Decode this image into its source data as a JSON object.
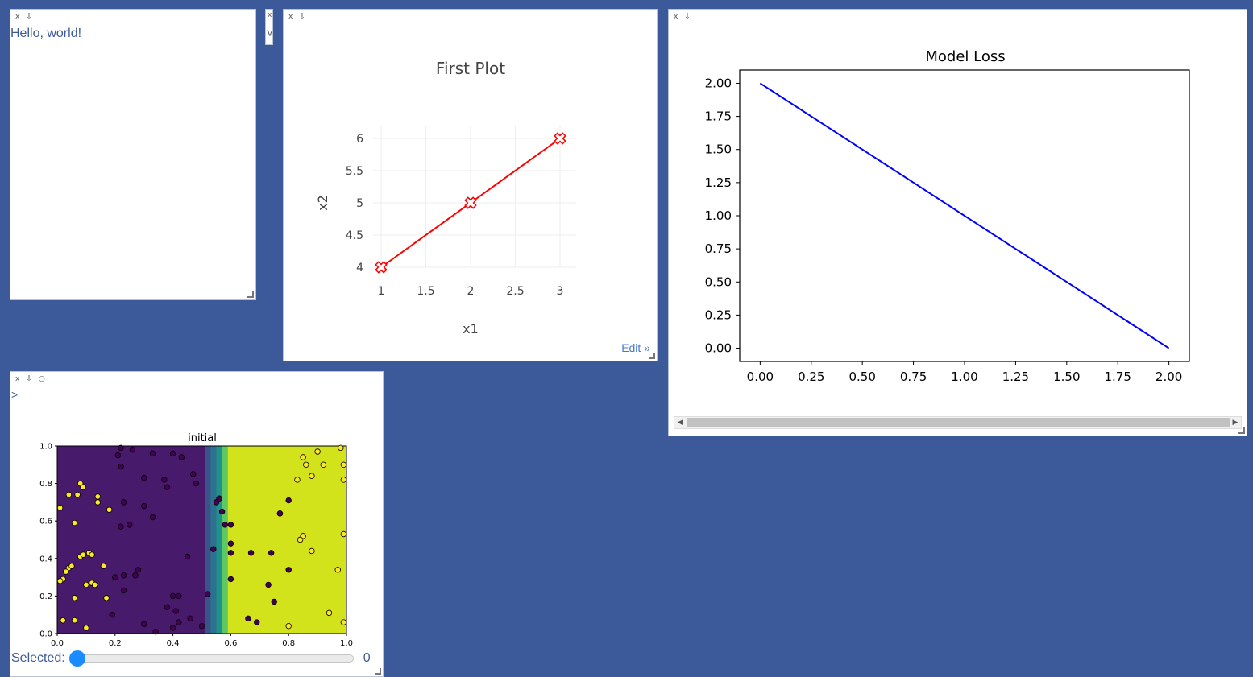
{
  "pane_controls": {
    "close": "x",
    "pin": "⇩",
    "refresh": "○"
  },
  "hello_pane": {
    "text": "Hello, world!"
  },
  "mini_pane": {
    "close": "x",
    "expand": ">"
  },
  "plotly_pane": {
    "edit_label": "Edit »",
    "chart_data": {
      "type": "line",
      "title": "First Plot",
      "xlabel": "x1",
      "ylabel": "x2",
      "x": [
        1,
        2,
        3
      ],
      "y": [
        4,
        5,
        6
      ],
      "xticks": [
        "1",
        "1.5",
        "2",
        "2.5",
        "3"
      ],
      "yticks": [
        "4",
        "4.5",
        "5",
        "5.5",
        "6"
      ],
      "xlim": [
        1,
        3
      ],
      "ylim": [
        4,
        6
      ],
      "line_color": "#ff0000",
      "marker": "x-cross",
      "grid": true
    }
  },
  "loss_pane": {
    "chart_data": {
      "type": "line",
      "title": "Model Loss",
      "x": [
        0.0,
        2.0
      ],
      "y": [
        2.0,
        0.0
      ],
      "xticks": [
        "0.00",
        "0.25",
        "0.50",
        "0.75",
        "1.00",
        "1.25",
        "1.50",
        "1.75",
        "2.00"
      ],
      "yticks": [
        "0.00",
        "0.25",
        "0.50",
        "0.75",
        "1.00",
        "1.25",
        "1.50",
        "1.75",
        "2.00"
      ],
      "xlim": [
        -0.1,
        2.1
      ],
      "ylim": [
        -0.1,
        2.1
      ],
      "line_color": "#0000ff",
      "grid": false
    }
  },
  "widget_pane": {
    "prompt": ">",
    "slider_label": "Selected:",
    "slider_value": "0",
    "slider_fraction": 0,
    "chart_data": {
      "type": "scatter",
      "title": "initial",
      "xticks": [
        "0.0",
        "0.2",
        "0.4",
        "0.6",
        "0.8",
        "1.0"
      ],
      "yticks": [
        "0.0",
        "0.2",
        "0.4",
        "0.6",
        "0.8",
        "1.0"
      ],
      "xlim": [
        0,
        1
      ],
      "ylim": [
        0,
        1
      ],
      "background_regions": [
        {
          "x0": 0.0,
          "x1": 0.51,
          "color": "#481a6c"
        },
        {
          "x0": 0.51,
          "x1": 0.53,
          "color": "#3b528b"
        },
        {
          "x0": 0.53,
          "x1": 0.55,
          "color": "#2c728e"
        },
        {
          "x0": 0.55,
          "x1": 0.57,
          "color": "#21918c"
        },
        {
          "x0": 0.57,
          "x1": 0.59,
          "color": "#5ec962"
        },
        {
          "x0": 0.59,
          "x1": 1.0,
          "color": "#d2e21b"
        }
      ],
      "series": [
        {
          "color": "#440154",
          "points": [
            [
              0.22,
              0.89
            ],
            [
              0.3,
              0.83
            ],
            [
              0.37,
              0.82
            ],
            [
              0.38,
              0.78
            ],
            [
              0.47,
              0.85
            ],
            [
              0.48,
              0.8
            ],
            [
              0.43,
              0.94
            ],
            [
              0.4,
              0.96
            ],
            [
              0.33,
              0.96
            ],
            [
              0.26,
              0.98
            ],
            [
              0.22,
              0.99
            ],
            [
              0.21,
              0.95
            ],
            [
              0.23,
              0.7
            ],
            [
              0.22,
              0.57
            ],
            [
              0.25,
              0.58
            ],
            [
              0.3,
              0.68
            ],
            [
              0.33,
              0.62
            ],
            [
              0.28,
              0.34
            ],
            [
              0.27,
              0.31
            ],
            [
              0.2,
              0.3
            ],
            [
              0.23,
              0.31
            ],
            [
              0.19,
              0.1
            ],
            [
              0.23,
              0.23
            ],
            [
              0.38,
              0.14
            ],
            [
              0.4,
              0.2
            ],
            [
              0.42,
              0.2
            ],
            [
              0.4,
              0.03
            ],
            [
              0.42,
              0.06
            ],
            [
              0.41,
              0.12
            ],
            [
              0.46,
              0.08
            ],
            [
              0.5,
              0.04
            ],
            [
              0.52,
              0.21
            ],
            [
              0.45,
              0.41
            ],
            [
              0.3,
              0.05
            ],
            [
              0.34,
              0.01
            ],
            [
              0.55,
              0.7
            ],
            [
              0.56,
              0.72
            ],
            [
              0.54,
              0.45
            ],
            [
              0.57,
              0.65
            ],
            [
              0.58,
              0.58
            ],
            [
              0.6,
              0.58
            ],
            [
              0.6,
              0.48
            ],
            [
              0.6,
              0.43
            ],
            [
              0.6,
              0.29
            ],
            [
              0.67,
              0.43
            ],
            [
              0.74,
              0.43
            ],
            [
              0.77,
              0.64
            ],
            [
              0.8,
              0.71
            ],
            [
              0.73,
              0.26
            ],
            [
              0.75,
              0.17
            ],
            [
              0.66,
              0.08
            ],
            [
              0.69,
              0.06
            ],
            [
              0.8,
              0.34
            ],
            [
              0.77,
              0.64
            ]
          ]
        },
        {
          "color": "#fde725",
          "points": [
            [
              0.01,
              0.67
            ],
            [
              0.04,
              0.74
            ],
            [
              0.07,
              0.74
            ],
            [
              0.08,
              0.8
            ],
            [
              0.09,
              0.78
            ],
            [
              0.14,
              0.7
            ],
            [
              0.14,
              0.73
            ],
            [
              0.18,
              0.66
            ],
            [
              0.06,
              0.59
            ],
            [
              0.08,
              0.41
            ],
            [
              0.09,
              0.42
            ],
            [
              0.11,
              0.43
            ],
            [
              0.12,
              0.42
            ],
            [
              0.04,
              0.35
            ],
            [
              0.05,
              0.36
            ],
            [
              0.03,
              0.33
            ],
            [
              0.02,
              0.29
            ],
            [
              0.01,
              0.28
            ],
            [
              0.1,
              0.26
            ],
            [
              0.12,
              0.27
            ],
            [
              0.13,
              0.26
            ],
            [
              0.16,
              0.36
            ],
            [
              0.17,
              0.19
            ],
            [
              0.06,
              0.19
            ],
            [
              0.02,
              0.07
            ],
            [
              0.06,
              0.07
            ],
            [
              0.1,
              0.03
            ],
            [
              0.83,
              0.82
            ],
            [
              0.86,
              0.9
            ],
            [
              0.88,
              0.84
            ],
            [
              0.9,
              0.97
            ],
            [
              0.92,
              0.9
            ],
            [
              0.85,
              0.94
            ],
            [
              0.98,
              0.99
            ],
            [
              0.99,
              0.9
            ],
            [
              0.99,
              0.82
            ],
            [
              0.99,
              0.53
            ],
            [
              0.85,
              0.52
            ],
            [
              0.84,
              0.5
            ],
            [
              0.88,
              0.44
            ],
            [
              0.97,
              0.34
            ],
            [
              0.94,
              0.11
            ],
            [
              0.99,
              0.06
            ],
            [
              0.8,
              0.04
            ]
          ]
        }
      ]
    }
  }
}
